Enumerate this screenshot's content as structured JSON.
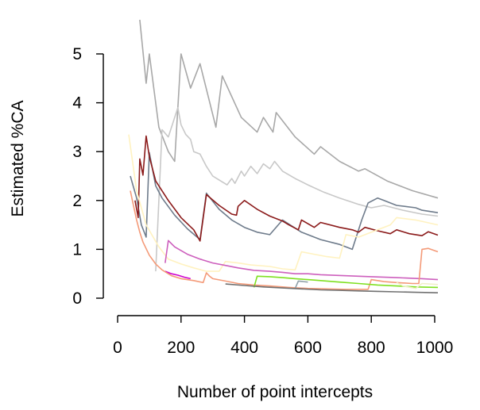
{
  "chart_data": {
    "type": "line",
    "xlabel": "Number of point intercepts",
    "ylabel": "Estimated %CA",
    "xlim": [
      0,
      1100
    ],
    "ylim": [
      -0.2,
      5.9
    ],
    "xticks": [
      0,
      200,
      400,
      600,
      800,
      1000
    ],
    "yticks": [
      0,
      1,
      2,
      3,
      4,
      5
    ],
    "grid": false,
    "legend": "none",
    "series": [
      {
        "color": "#a8a8a8",
        "points": [
          [
            70,
            5.7
          ],
          [
            90,
            4.4
          ],
          [
            100,
            5.0
          ],
          [
            130,
            3.5
          ],
          [
            160,
            3.0
          ],
          [
            180,
            2.8
          ],
          [
            200,
            5.0
          ],
          [
            230,
            4.3
          ],
          [
            260,
            4.8
          ],
          [
            310,
            3.5
          ],
          [
            330,
            4.55
          ],
          [
            390,
            3.7
          ],
          [
            440,
            3.4
          ],
          [
            460,
            3.7
          ],
          [
            490,
            3.4
          ],
          [
            500,
            3.8
          ],
          [
            560,
            3.3
          ],
          [
            620,
            2.95
          ],
          [
            640,
            3.1
          ],
          [
            700,
            2.8
          ],
          [
            760,
            2.6
          ],
          [
            780,
            2.65
          ],
          [
            850,
            2.4
          ],
          [
            930,
            2.2
          ],
          [
            1010,
            2.05
          ]
        ]
      },
      {
        "color": "#c8c8c8",
        "points": [
          [
            120,
            0.55
          ],
          [
            140,
            3.45
          ],
          [
            160,
            3.3
          ],
          [
            190,
            3.9
          ],
          [
            200,
            3.55
          ],
          [
            215,
            3.35
          ],
          [
            230,
            3.25
          ],
          [
            240,
            3.0
          ],
          [
            260,
            2.95
          ],
          [
            280,
            2.7
          ],
          [
            300,
            2.5
          ],
          [
            320,
            2.42
          ],
          [
            345,
            2.32
          ],
          [
            360,
            2.45
          ],
          [
            370,
            2.35
          ],
          [
            390,
            2.6
          ],
          [
            400,
            2.5
          ],
          [
            420,
            2.7
          ],
          [
            440,
            2.55
          ],
          [
            460,
            2.75
          ],
          [
            480,
            2.65
          ],
          [
            495,
            2.8
          ],
          [
            520,
            2.6
          ],
          [
            560,
            2.45
          ],
          [
            600,
            2.32
          ],
          [
            650,
            2.17
          ],
          [
            700,
            2.05
          ],
          [
            760,
            1.92
          ],
          [
            800,
            1.85
          ],
          [
            840,
            1.9
          ],
          [
            900,
            1.8
          ],
          [
            960,
            1.72
          ],
          [
            1010,
            1.68
          ]
        ]
      },
      {
        "color": "#6e7b8b",
        "points": [
          [
            40,
            2.5
          ],
          [
            60,
            2.05
          ],
          [
            75,
            1.5
          ],
          [
            90,
            1.25
          ],
          [
            100,
            2.98
          ],
          [
            120,
            2.3
          ],
          [
            140,
            2.05
          ],
          [
            180,
            1.7
          ],
          [
            220,
            1.42
          ],
          [
            260,
            1.2
          ],
          [
            280,
            2.15
          ],
          [
            320,
            1.82
          ],
          [
            360,
            1.6
          ],
          [
            400,
            1.45
          ],
          [
            440,
            1.35
          ],
          [
            480,
            1.3
          ],
          [
            520,
            1.6
          ],
          [
            580,
            1.35
          ],
          [
            640,
            1.2
          ],
          [
            700,
            1.1
          ],
          [
            740,
            1.0
          ],
          [
            770,
            1.6
          ],
          [
            790,
            1.95
          ],
          [
            820,
            2.05
          ],
          [
            840,
            2.0
          ],
          [
            880,
            1.9
          ],
          [
            940,
            1.85
          ],
          [
            960,
            1.8
          ],
          [
            1010,
            1.75
          ]
        ]
      },
      {
        "color": "#8b1a1a",
        "points": [
          [
            55,
            2.0
          ],
          [
            65,
            1.65
          ],
          [
            70,
            2.85
          ],
          [
            80,
            2.52
          ],
          [
            90,
            3.32
          ],
          [
            100,
            2.9
          ],
          [
            120,
            2.4
          ],
          [
            160,
            2.0
          ],
          [
            200,
            1.65
          ],
          [
            240,
            1.4
          ],
          [
            260,
            1.17
          ],
          [
            280,
            2.12
          ],
          [
            320,
            1.9
          ],
          [
            360,
            1.72
          ],
          [
            375,
            1.7
          ],
          [
            380,
            1.88
          ],
          [
            400,
            2.0
          ],
          [
            440,
            1.82
          ],
          [
            480,
            1.68
          ],
          [
            520,
            1.58
          ],
          [
            540,
            1.5
          ],
          [
            570,
            1.4
          ],
          [
            580,
            1.6
          ],
          [
            620,
            1.45
          ],
          [
            640,
            1.55
          ],
          [
            700,
            1.45
          ],
          [
            740,
            1.4
          ],
          [
            760,
            1.35
          ],
          [
            780,
            1.45
          ],
          [
            820,
            1.38
          ],
          [
            860,
            1.32
          ],
          [
            880,
            1.4
          ],
          [
            920,
            1.32
          ],
          [
            960,
            1.28
          ],
          [
            980,
            1.36
          ],
          [
            1010,
            1.29
          ]
        ]
      },
      {
        "color": "#fff2c0",
        "points": [
          [
            35,
            3.35
          ],
          [
            60,
            2.2
          ],
          [
            90,
            1.5
          ],
          [
            130,
            1.05
          ],
          [
            160,
            0.8
          ],
          [
            200,
            0.7
          ],
          [
            240,
            0.62
          ],
          [
            280,
            0.55
          ],
          [
            320,
            0.55
          ],
          [
            340,
            0.75
          ],
          [
            380,
            0.72
          ],
          [
            420,
            0.68
          ],
          [
            480,
            0.65
          ],
          [
            520,
            0.6
          ],
          [
            560,
            0.58
          ],
          [
            580,
            0.95
          ],
          [
            620,
            0.9
          ],
          [
            660,
            0.85
          ],
          [
            700,
            0.82
          ],
          [
            720,
            1.3
          ],
          [
            760,
            1.25
          ],
          [
            820,
            1.4
          ],
          [
            860,
            1.5
          ],
          [
            880,
            1.65
          ],
          [
            940,
            1.6
          ],
          [
            1010,
            1.5
          ]
        ]
      },
      {
        "color": "#cd5fbd",
        "points": [
          [
            150,
            0.72
          ],
          [
            160,
            1.18
          ],
          [
            180,
            1.05
          ],
          [
            220,
            0.9
          ],
          [
            260,
            0.8
          ],
          [
            300,
            0.72
          ],
          [
            340,
            0.67
          ],
          [
            380,
            0.62
          ],
          [
            430,
            0.57
          ],
          [
            480,
            0.55
          ],
          [
            520,
            0.53
          ],
          [
            560,
            0.5
          ],
          [
            600,
            0.5
          ],
          [
            640,
            0.48
          ],
          [
            720,
            0.46
          ],
          [
            800,
            0.44
          ],
          [
            880,
            0.42
          ],
          [
            960,
            0.4
          ],
          [
            1010,
            0.38
          ]
        ]
      },
      {
        "color": "#cd00cd",
        "points": [
          [
            150,
            0.55
          ],
          [
            170,
            0.5
          ],
          [
            190,
            0.47
          ],
          [
            210,
            0.43
          ],
          [
            230,
            0.4
          ]
        ]
      },
      {
        "color": "#f49a78",
        "points": [
          [
            40,
            2.2
          ],
          [
            50,
            1.9
          ],
          [
            60,
            1.6
          ],
          [
            70,
            1.35
          ],
          [
            80,
            1.15
          ],
          [
            100,
            0.88
          ],
          [
            120,
            0.7
          ],
          [
            140,
            0.58
          ],
          [
            170,
            0.46
          ],
          [
            200,
            0.4
          ],
          [
            240,
            0.36
          ],
          [
            270,
            0.32
          ],
          [
            280,
            0.52
          ],
          [
            290,
            0.45
          ],
          [
            300,
            0.4
          ],
          [
            340,
            0.35
          ],
          [
            380,
            0.3
          ],
          [
            430,
            0.27
          ],
          [
            480,
            0.25
          ],
          [
            540,
            0.22
          ],
          [
            600,
            0.2
          ],
          [
            660,
            0.19
          ],
          [
            720,
            0.18
          ],
          [
            790,
            0.18
          ],
          [
            800,
            0.38
          ],
          [
            840,
            0.34
          ],
          [
            880,
            0.32
          ],
          [
            930,
            0.3
          ],
          [
            950,
            0.3
          ],
          [
            960,
            1.0
          ],
          [
            980,
            1.02
          ],
          [
            1010,
            0.95
          ]
        ]
      },
      {
        "color": "#7fe020",
        "points": [
          [
            430,
            0.22
          ],
          [
            440,
            0.45
          ],
          [
            480,
            0.44
          ],
          [
            520,
            0.42
          ],
          [
            560,
            0.4
          ],
          [
            600,
            0.38
          ],
          [
            640,
            0.36
          ],
          [
            700,
            0.33
          ],
          [
            760,
            0.3
          ],
          [
            820,
            0.27
          ],
          [
            880,
            0.25
          ],
          [
            940,
            0.23
          ],
          [
            1010,
            0.22
          ]
        ]
      },
      {
        "color": "#8fa0a8",
        "points": [
          [
            560,
            0.2
          ],
          [
            570,
            0.35
          ],
          [
            600,
            0.33
          ]
        ]
      },
      {
        "color": "#707070",
        "points": [
          [
            340,
            0.29
          ],
          [
            400,
            0.26
          ],
          [
            460,
            0.23
          ],
          [
            520,
            0.21
          ],
          [
            580,
            0.19
          ],
          [
            640,
            0.17
          ],
          [
            700,
            0.16
          ],
          [
            760,
            0.15
          ],
          [
            820,
            0.14
          ],
          [
            880,
            0.13
          ],
          [
            940,
            0.12
          ],
          [
            1010,
            0.11
          ]
        ]
      },
      {
        "color": "#f0f0c8",
        "points": [
          [
            880,
            0.32
          ],
          [
            900,
            0.25
          ],
          [
            940,
            0.2
          ],
          [
            960,
            0.3
          ],
          [
            1010,
            0.28
          ]
        ]
      }
    ]
  }
}
